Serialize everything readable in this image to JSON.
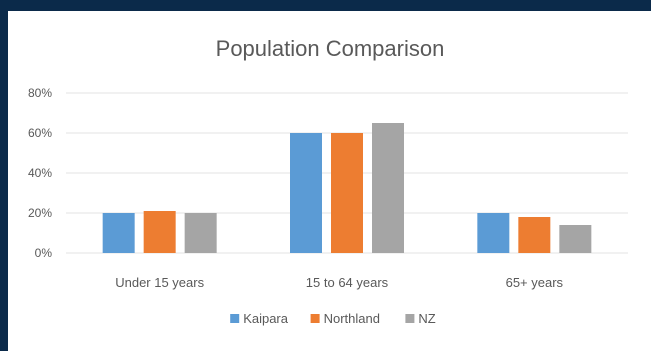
{
  "chart_data": {
    "type": "bar",
    "title": "Population Comparison",
    "categories": [
      "Under 15 years",
      "15 to 64 years",
      "65+ years"
    ],
    "series": [
      {
        "name": "Kaipara",
        "values": [
          20,
          60,
          20
        ],
        "color": "#5b9bd5"
      },
      {
        "name": "Northland",
        "values": [
          21,
          60,
          18
        ],
        "color": "#ed7d31"
      },
      {
        "name": "NZ",
        "values": [
          20,
          65,
          14
        ],
        "color": "#a5a5a5"
      }
    ],
    "ylim": [
      0,
      80
    ],
    "yticks": [
      "0%",
      "20%",
      "40%",
      "60%",
      "80%"
    ],
    "ytick_values": [
      0,
      20,
      40,
      60,
      80
    ],
    "grid": true,
    "legend": "bottom"
  }
}
